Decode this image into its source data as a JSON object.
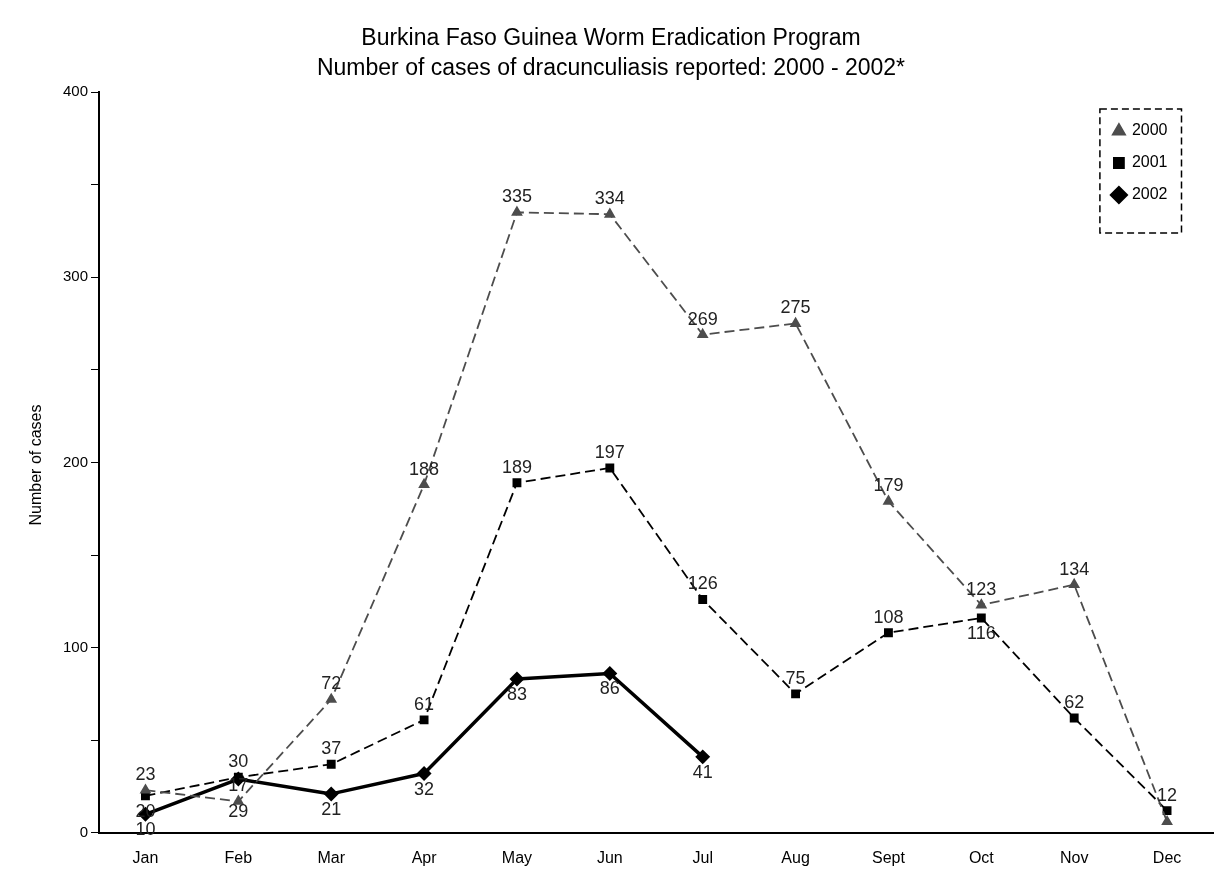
{
  "chart_data": {
    "type": "line",
    "title": "Burkina Faso Guinea Worm Eradication Program",
    "subtitle": "Number of cases of dracunculiasis reported: 2000 - 2002*",
    "ylabel": "Number of cases",
    "categories": [
      "Jan",
      "Feb",
      "Mar",
      "Apr",
      "May",
      "Jun",
      "Jul",
      "Aug",
      "Sept",
      "Oct",
      "Nov",
      "Dec"
    ],
    "series": [
      {
        "name": "2000",
        "color": "#4d4d4d",
        "marker": "triangle",
        "line_style": "dashed",
        "values": [
          23,
          17,
          72,
          188,
          335,
          334,
          269,
          275,
          179,
          123,
          134,
          6
        ],
        "value_labels": [
          "23",
          "17",
          "72",
          "188",
          "335",
          "334",
          "269",
          "275",
          "179",
          "123",
          "134",
          null
        ]
      },
      {
        "name": "2001",
        "color": "#000000",
        "marker": "square",
        "line_style": "dashed",
        "values": [
          20,
          30,
          37,
          61,
          189,
          197,
          126,
          75,
          108,
          116,
          62,
          12
        ],
        "value_labels": [
          "20",
          "30",
          "37",
          "61",
          "189",
          "197",
          "126",
          "75",
          "108",
          "116",
          "62",
          "12"
        ]
      },
      {
        "name": "2002",
        "color": "#000000",
        "marker": "diamond",
        "line_style": "solid",
        "values": [
          10,
          29,
          21,
          32,
          83,
          86,
          41,
          null,
          null,
          null,
          null,
          null
        ],
        "value_labels": [
          "10",
          "29",
          "21",
          "32",
          "83",
          "86",
          "41",
          null,
          null,
          null,
          null,
          null
        ]
      }
    ],
    "ylim": [
      0,
      400
    ],
    "yticks": [
      0,
      {
        "value": 50,
        "label": null
      },
      100,
      {
        "value": 150,
        "label": null
      },
      200,
      {
        "value": 250,
        "label": null
      },
      300,
      {
        "value": 350,
        "label": null
      },
      400
    ],
    "grid": false,
    "legend": "top right"
  }
}
